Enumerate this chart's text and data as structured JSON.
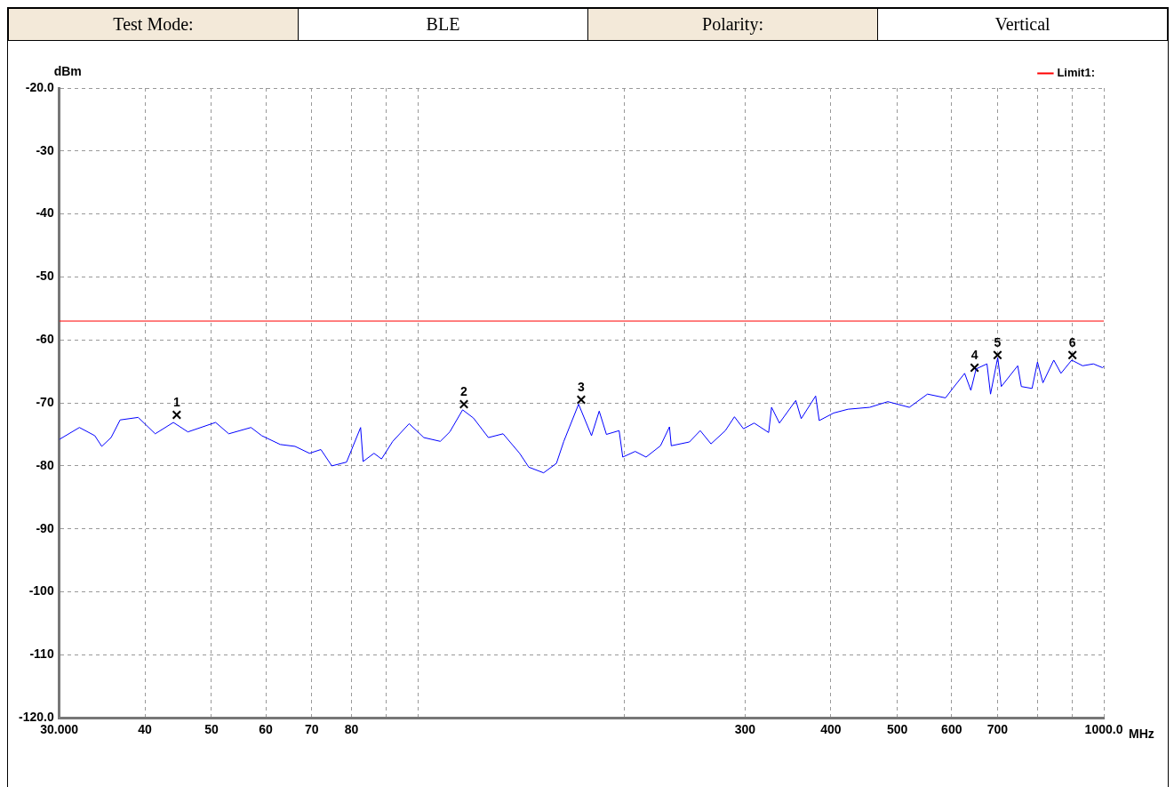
{
  "chart_data": {
    "type": "line",
    "annotations": [
      "Test Mode:",
      "BLE",
      "Polarity:",
      "Vertical",
      {
        "text": "1",
        "x": 44.5,
        "y": -71.9
      },
      {
        "text": "2",
        "x": 116.7,
        "y": -70.2
      },
      {
        "text": "3",
        "x": 173,
        "y": -69.5
      },
      {
        "text": "4",
        "x": 648,
        "y": -64.4
      },
      {
        "text": "5",
        "x": 700,
        "y": -62.4
      },
      {
        "text": "6",
        "x": 900,
        "y": -62.4
      }
    ],
    "xlabel": "MHz",
    "ylabel": "dBm",
    "log": "x",
    "xlim": [
      30,
      1000
    ],
    "xticks": [
      {
        "value": 30,
        "label": "30.000"
      },
      40,
      50,
      60,
      70,
      80,
      {
        "value": 90,
        "label": null
      },
      {
        "value": 100,
        "label": null
      },
      {
        "value": 200,
        "label": null
      },
      300,
      400,
      500,
      600,
      700,
      {
        "value": 800,
        "label": null
      },
      {
        "value": 900,
        "label": null
      },
      {
        "value": 1000,
        "label": "1000.0"
      }
    ],
    "ylim": [
      -120,
      -20
    ],
    "yticks": [
      {
        "value": -120,
        "label": "-120.0"
      },
      -110,
      -100,
      -90,
      -80,
      -70,
      -60,
      -50,
      -40,
      -30,
      {
        "value": -20,
        "label": "-20.0"
      }
    ],
    "grid": true,
    "legend": "top right",
    "series": [
      {
        "color": "#0000ff",
        "marker": "none",
        "x": [
          30.0,
          32.1,
          33.8,
          34.6,
          35.7,
          36.8,
          39.1,
          41.4,
          44.0,
          46.2,
          50.7,
          53.0,
          57.1,
          59.2,
          63.0,
          66.2,
          69.5,
          72.2,
          74.9,
          78.7,
          82.5,
          83.2,
          86.3,
          88.5,
          91.9,
          97.1,
          102.0,
          107.8,
          111.3,
          116.2,
          120.5,
          126.7,
          133.1,
          140.7,
          145.1,
          152.5,
          159.2,
          163.2,
          171.5,
          179.1,
          183.8,
          188.3,
          196.5,
          198.9,
          207.4,
          215.1,
          225.8,
          232.7,
          234.1,
          248.8,
          258.0,
          267.5,
          280.7,
          289.4,
          298.3,
          309.2,
          324.6,
          327.8,
          336.6,
          355.6,
          362.1,
          380.1,
          384.7,
          403.8,
          423.8,
          455.7,
          484.3,
          520.6,
          553.3,
          587.8,
          602.2,
          626.8,
          640.0,
          651.4,
          675.6,
          683.7,
          700.4,
          708.9,
          749.0,
          758.2,
          786.0,
          800.4,
          815.2,
          845.4,
          866.1,
          897.9,
          931.5,
          965.7,
          995.7,
          1000
        ],
        "values": [
          -75.8,
          -73.9,
          -75.2,
          -76.9,
          -75.5,
          -72.7,
          -72.3,
          -74.9,
          -73.1,
          -74.6,
          -73.1,
          -74.9,
          -73.9,
          -75.2,
          -76.6,
          -76.9,
          -78.0,
          -77.4,
          -80.0,
          -79.4,
          -73.9,
          -79.3,
          -78.0,
          -78.9,
          -76.1,
          -73.3,
          -75.5,
          -76.1,
          -74.6,
          -71.1,
          -72.4,
          -75.5,
          -74.9,
          -78.0,
          -80.2,
          -81.1,
          -79.6,
          -76.1,
          -70.2,
          -75.2,
          -71.3,
          -75.0,
          -74.4,
          -78.6,
          -77.7,
          -78.6,
          -76.8,
          -73.8,
          -76.8,
          -76.2,
          -74.4,
          -76.5,
          -74.4,
          -72.2,
          -74.1,
          -73.2,
          -74.7,
          -70.7,
          -73.2,
          -69.6,
          -72.5,
          -68.9,
          -72.8,
          -71.6,
          -71.0,
          -70.7,
          -69.8,
          -70.7,
          -68.6,
          -69.2,
          -67.7,
          -65.3,
          -68.0,
          -64.6,
          -63.8,
          -68.6,
          -62.8,
          -67.4,
          -64.1,
          -67.4,
          -67.7,
          -63.5,
          -66.8,
          -63.2,
          -65.3,
          -63.2,
          -64.1,
          -63.8,
          -64.4,
          -64.2
        ]
      },
      {
        "type": "scatter",
        "color": "#000000",
        "marker": "cross",
        "x": [
          44.5,
          116.7,
          173,
          648,
          700,
          900
        ],
        "values": [
          -71.9,
          -70.2,
          -69.5,
          -64.4,
          -62.4,
          -62.4
        ]
      },
      {
        "type": "line",
        "name": "Limit1:",
        "color": "#ff0000",
        "marker": "none",
        "x": [
          30,
          1000
        ],
        "values": [
          -57,
          -57
        ]
      }
    ]
  }
}
